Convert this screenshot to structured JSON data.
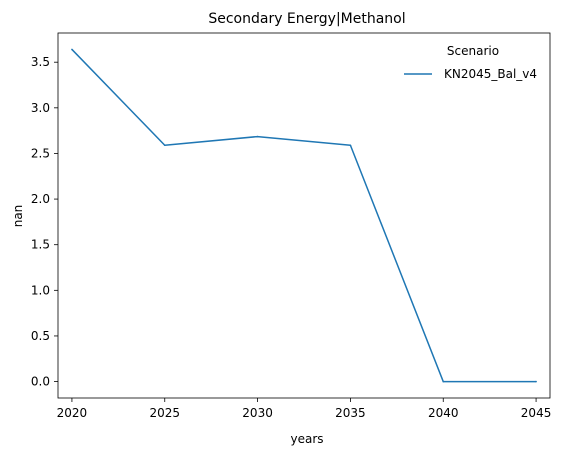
{
  "chart_data": {
    "type": "line",
    "title": "Secondary Energy|Methanol",
    "xlabel": "years",
    "ylabel": "nan",
    "x": [
      2020,
      2025,
      2030,
      2035,
      2040,
      2045
    ],
    "xticks": [
      "2020",
      "2025",
      "2030",
      "2035",
      "2040",
      "2045"
    ],
    "yticks": [
      "0.0",
      "0.5",
      "1.0",
      "1.5",
      "2.0",
      "2.5",
      "3.0",
      "3.5"
    ],
    "xlim": [
      2019.25,
      2045.75
    ],
    "ylim": [
      -0.18,
      3.82
    ],
    "grid": false,
    "legend": {
      "title": "Scenario",
      "placement": "top-right"
    },
    "series": [
      {
        "name": "KN2045_Bal_v4",
        "color": "#1f77b4",
        "values": [
          3.64,
          2.59,
          2.685,
          2.59,
          0.0,
          0.0
        ]
      }
    ]
  }
}
